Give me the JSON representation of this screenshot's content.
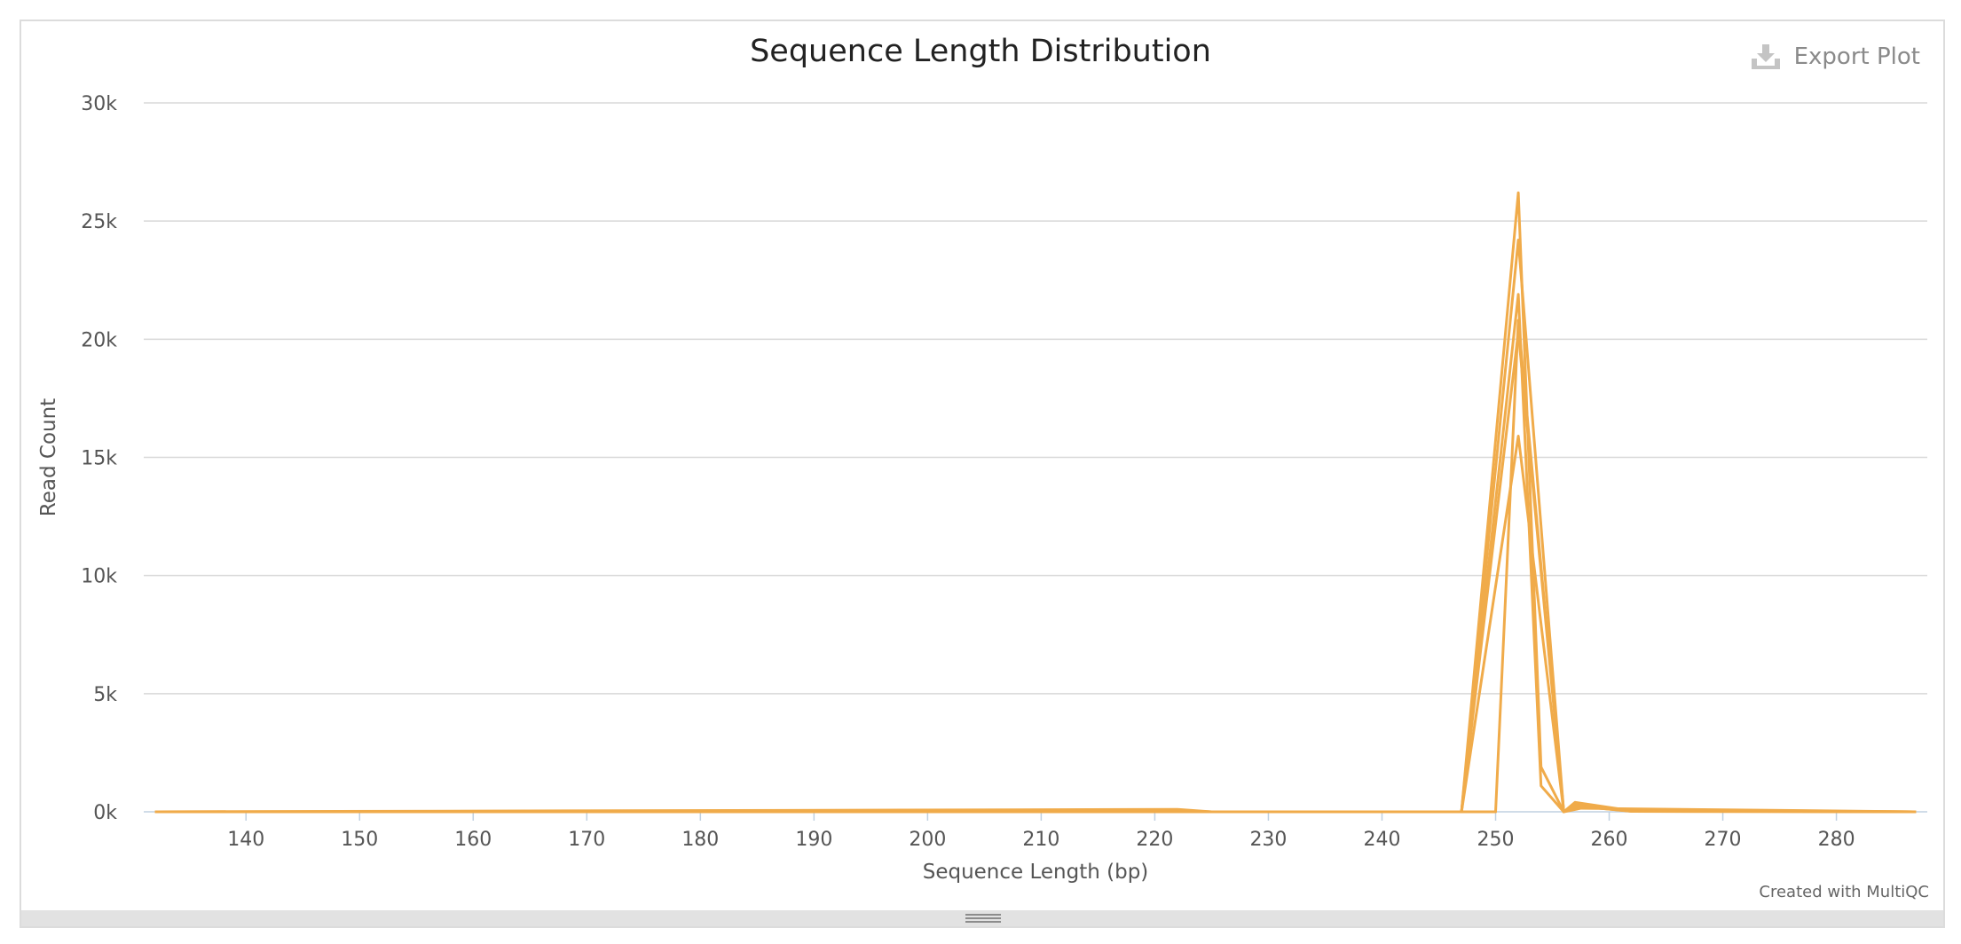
{
  "export_label": "Export Plot",
  "credit": "Created with MultiQC",
  "icons": {
    "export": "download-icon",
    "resize": "resize-grip-icon"
  },
  "colors": {
    "series": "#f0ab4a",
    "grid": "#d8d8d8",
    "axis": "#c0d0e0"
  },
  "chart_data": {
    "type": "line",
    "title": "Sequence Length Distribution",
    "xlabel": "Sequence Length (bp)",
    "ylabel": "Read Count",
    "xlim": [
      131,
      288
    ],
    "ylim": [
      0,
      30000
    ],
    "xticks": [
      140,
      150,
      160,
      170,
      180,
      190,
      200,
      210,
      220,
      230,
      240,
      250,
      260,
      270,
      280
    ],
    "xtick_labels": [
      "140",
      "150",
      "160",
      "170",
      "180",
      "190",
      "200",
      "210",
      "220",
      "230",
      "240",
      "250",
      "260",
      "270",
      "280"
    ],
    "yticks": [
      0,
      5000,
      10000,
      15000,
      20000,
      25000,
      30000
    ],
    "ytick_labels": [
      "0k",
      "5k",
      "10k",
      "15k",
      "20k",
      "25k",
      "30k"
    ],
    "grid": true,
    "series": [
      {
        "x": [
          132,
          222,
          225,
          247,
          252,
          254,
          256,
          257,
          262,
          287
        ],
        "y": [
          0,
          100,
          0,
          0,
          26200,
          1900,
          0,
          350,
          50,
          0
        ]
      },
      {
        "x": [
          132,
          222,
          225,
          247,
          252,
          256,
          257,
          262,
          287
        ],
        "y": [
          0,
          60,
          0,
          0,
          24200,
          0,
          300,
          20,
          0
        ]
      },
      {
        "x": [
          132,
          247,
          252,
          254,
          256,
          257,
          262,
          287
        ],
        "y": [
          0,
          0,
          21900,
          1100,
          0,
          400,
          40,
          0
        ]
      },
      {
        "x": [
          132,
          247,
          252,
          256,
          258,
          262,
          287
        ],
        "y": [
          0,
          0,
          20300,
          0,
          200,
          30,
          0
        ]
      },
      {
        "x": [
          132,
          247,
          252,
          256,
          257,
          262,
          287
        ],
        "y": [
          0,
          0,
          15900,
          0,
          250,
          20,
          0
        ]
      },
      {
        "x": [
          132,
          250,
          252,
          256,
          257,
          287
        ],
        "y": [
          0,
          0,
          20800,
          0,
          150,
          0
        ]
      }
    ]
  }
}
